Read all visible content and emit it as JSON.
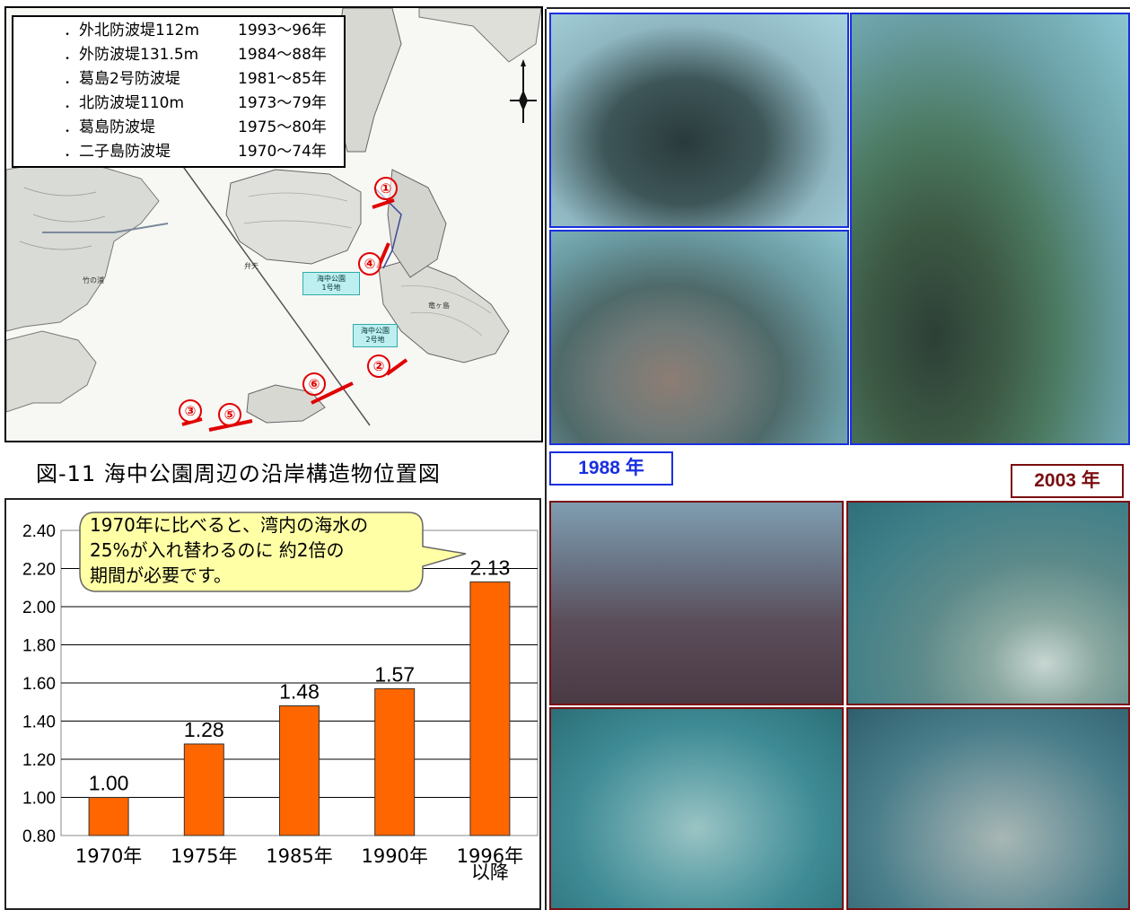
{
  "map": {
    "legend": [
      {
        "name": "．外北防波堤112m",
        "years": "1993～96年"
      },
      {
        "name": "．外防波堤131.5m",
        "years": "1984～88年"
      },
      {
        "name": "．葛島2号防波堤",
        "years": "1981～85年"
      },
      {
        "name": "．北防波堤110m",
        "years": "1973～79年"
      },
      {
        "name": "．葛島防波堤",
        "years": "1975～80年"
      },
      {
        "name": "．二子島防波堤",
        "years": "1970～74年"
      }
    ],
    "site_numbers": [
      "①",
      "②",
      "③",
      "④",
      "⑤",
      "⑥"
    ],
    "park_label_1": "海中公園\n1号地",
    "park_label_2": "海中公園\n2号地",
    "island_label": "竜ヶ島",
    "town_label": "竹の浦",
    "shore_label": "弁天",
    "caption": "図-11  海中公園周辺の沿岸構造物位置図"
  },
  "chart_data": {
    "type": "bar",
    "categories": [
      "1970年",
      "1975年",
      "1985年",
      "1990年",
      "1996年以降"
    ],
    "category_lines": [
      [
        "1970年"
      ],
      [
        "1975年"
      ],
      [
        "1985年"
      ],
      [
        "1990年"
      ],
      [
        "1996年",
        "以降"
      ]
    ],
    "values": [
      1.0,
      1.28,
      1.48,
      1.57,
      2.13
    ],
    "value_labels": [
      "1.00",
      "1.28",
      "1.48",
      "1.57",
      "2.13"
    ],
    "yticks": [
      "2.40",
      "2.20",
      "2.00",
      "1.80",
      "1.60",
      "1.40",
      "1.20",
      "1.00",
      "0.80"
    ],
    "ylim": [
      0.8,
      2.4
    ],
    "title": "",
    "xlabel": "",
    "ylabel": "",
    "grid": "horizontal gridlines at 2.20 and below",
    "bar_color": "#ff6600",
    "annotation": [
      "1970年に比べると、湾内の海水の",
      "25%が入れ替わるのに 約2倍の",
      "期間が必要です。"
    ]
  },
  "photos": {
    "label_1988": "1988 年",
    "label_2003": "2003 年",
    "color_1988": "#1a2fe0",
    "color_2003": "#7a0e10"
  }
}
